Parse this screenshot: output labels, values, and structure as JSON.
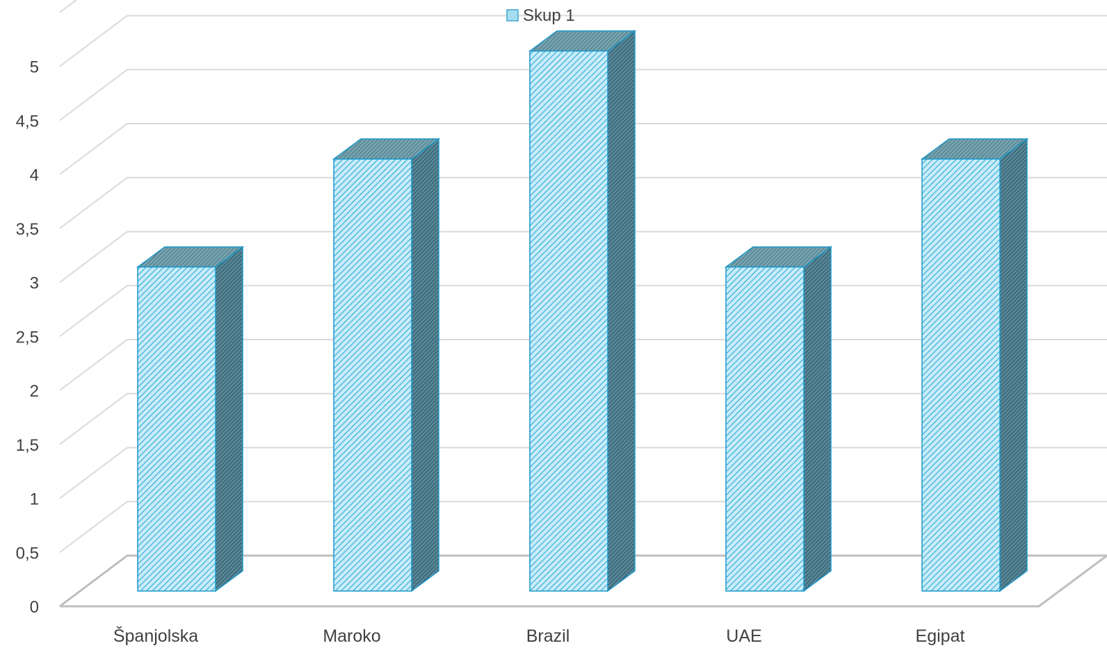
{
  "chart_data": {
    "type": "bar",
    "style": "3d-column",
    "categories": [
      "Španjolska",
      "Maroko",
      "Brazil",
      "UAE",
      "Egipat"
    ],
    "series": [
      {
        "name": "Skup 1",
        "values": [
          3,
          4,
          5,
          3,
          4
        ]
      }
    ],
    "yticks": [
      "0",
      "0,5",
      "1",
      "1,5",
      "2",
      "2,5",
      "3",
      "3,5",
      "4",
      "4,5",
      "5"
    ],
    "ylim": [
      0,
      5.5
    ],
    "grid": true,
    "legend": "top-center",
    "colors": {
      "bar_front": "#c9ecf8",
      "bar_hatch": "#29a9d8",
      "bar_outline": "#1f97c7",
      "bar_side": "#4c7f8f",
      "bar_top": "#6f9eaa",
      "grid": "#d9d9d9",
      "floor": "#bfbfbf"
    }
  }
}
